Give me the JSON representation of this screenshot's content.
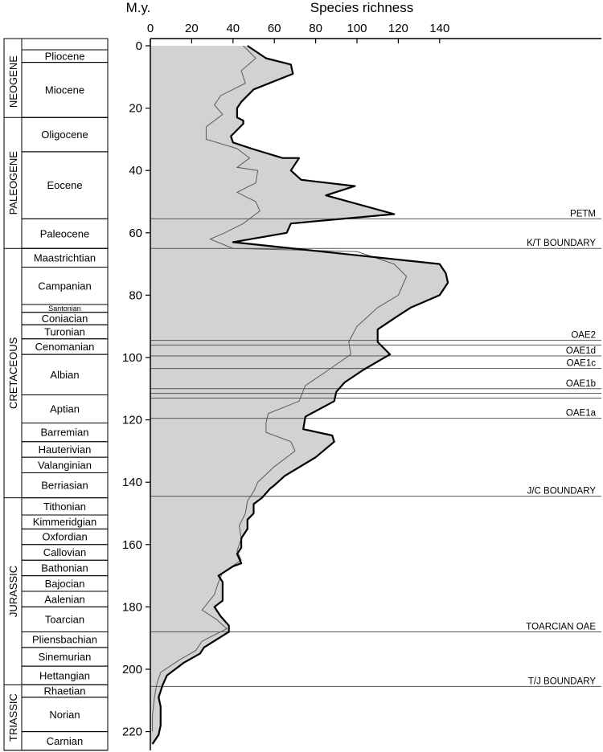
{
  "chart_data": {
    "type": "area",
    "xlabel": "Species richness",
    "ylabel": "M.y.",
    "xlim": [
      0,
      145
    ],
    "ylim": [
      0,
      224
    ],
    "y_inverted": true,
    "grid": false,
    "x_ticks": [
      0,
      20,
      40,
      60,
      80,
      100,
      120,
      140
    ],
    "y_ticks": [
      0,
      20,
      40,
      60,
      80,
      100,
      120,
      140,
      160,
      180,
      200,
      220
    ],
    "series": [
      {
        "style": "thick-outline-gray-fill",
        "points": [
          [
            47,
            0
          ],
          [
            56,
            4
          ],
          [
            68,
            6
          ],
          [
            69,
            9
          ],
          [
            50,
            14
          ],
          [
            44,
            18
          ],
          [
            42,
            20
          ],
          [
            42,
            23
          ],
          [
            45,
            24
          ],
          [
            45,
            25
          ],
          [
            39,
            29
          ],
          [
            40,
            31
          ],
          [
            49,
            33
          ],
          [
            64,
            36
          ],
          [
            72,
            36
          ],
          [
            68,
            40
          ],
          [
            73,
            43
          ],
          [
            99,
            45
          ],
          [
            85,
            48
          ],
          [
            118,
            54
          ],
          [
            68,
            57
          ],
          [
            66,
            60
          ],
          [
            40,
            63
          ],
          [
            140,
            70
          ],
          [
            143,
            73
          ],
          [
            144,
            76
          ],
          [
            140,
            80
          ],
          [
            126,
            84
          ],
          [
            119,
            87
          ],
          [
            110,
            91
          ],
          [
            110,
            95
          ],
          [
            116,
            99
          ],
          [
            103,
            104
          ],
          [
            94,
            108
          ],
          [
            90,
            111
          ],
          [
            89,
            114
          ],
          [
            75,
            119
          ],
          [
            74,
            123
          ],
          [
            88,
            125
          ],
          [
            89,
            127
          ],
          [
            80,
            132
          ],
          [
            65,
            138
          ],
          [
            60,
            141
          ],
          [
            58,
            142
          ],
          [
            54,
            145
          ],
          [
            50,
            147
          ],
          [
            50,
            150
          ],
          [
            47,
            152
          ],
          [
            47,
            155
          ],
          [
            44,
            158
          ],
          [
            44,
            161
          ],
          [
            42,
            163
          ],
          [
            44,
            166
          ],
          [
            40,
            167
          ],
          [
            33,
            170
          ],
          [
            35,
            172
          ],
          [
            35,
            175
          ],
          [
            35,
            178
          ],
          [
            31,
            180
          ],
          [
            34,
            183
          ],
          [
            38,
            186
          ],
          [
            38,
            188
          ],
          [
            26,
            193
          ],
          [
            24,
            195
          ],
          [
            16,
            198
          ],
          [
            8,
            202
          ],
          [
            6,
            205
          ],
          [
            5,
            207
          ],
          [
            4,
            209
          ],
          [
            5,
            212
          ],
          [
            5,
            216
          ],
          [
            5,
            218
          ],
          [
            4,
            221
          ],
          [
            1,
            224
          ]
        ]
      },
      {
        "style": "thin-line",
        "points": [
          [
            45,
            0
          ],
          [
            51,
            4
          ],
          [
            44,
            8
          ],
          [
            46,
            12
          ],
          [
            34,
            16
          ],
          [
            31,
            19
          ],
          [
            35,
            22
          ],
          [
            27,
            26
          ],
          [
            27,
            30
          ],
          [
            42,
            33
          ],
          [
            48,
            36
          ],
          [
            42,
            39
          ],
          [
            52,
            40
          ],
          [
            51,
            44
          ],
          [
            42,
            47
          ],
          [
            51,
            50
          ],
          [
            53,
            53
          ],
          [
            45,
            57
          ],
          [
            36,
            60
          ],
          [
            29,
            62
          ],
          [
            40,
            65
          ],
          [
            100,
            66
          ],
          [
            118,
            70
          ],
          [
            124,
            74
          ],
          [
            120,
            80
          ],
          [
            110,
            84
          ],
          [
            100,
            90
          ],
          [
            96,
            95
          ],
          [
            97,
            99
          ],
          [
            84,
            105
          ],
          [
            75,
            109
          ],
          [
            72,
            114
          ],
          [
            57,
            118
          ],
          [
            56,
            121
          ],
          [
            56,
            124
          ],
          [
            68,
            127
          ],
          [
            70,
            130
          ],
          [
            60,
            135
          ],
          [
            52,
            140
          ],
          [
            50,
            143
          ],
          [
            47,
            146
          ],
          [
            46,
            150
          ],
          [
            43,
            154
          ],
          [
            44,
            158
          ],
          [
            42,
            162
          ],
          [
            44,
            165
          ],
          [
            35,
            169
          ],
          [
            33,
            172
          ],
          [
            31,
            176
          ],
          [
            25,
            181
          ],
          [
            32,
            184
          ],
          [
            37,
            187
          ],
          [
            25,
            191
          ],
          [
            22,
            194
          ],
          [
            14,
            197
          ],
          [
            5,
            201
          ],
          [
            3,
            205
          ],
          [
            2,
            209
          ],
          [
            1,
            215
          ],
          [
            1,
            220
          ]
        ]
      }
    ],
    "events": [
      {
        "label": "PETM",
        "y": 55.5
      },
      {
        "label": "K/T BOUNDARY",
        "y": 65
      },
      {
        "label": "OAE2",
        "y": 94.5
      },
      {
        "label": "",
        "y": 96
      },
      {
        "label": "OAE1d",
        "y": 99.5
      },
      {
        "label": "OAE1c",
        "y": 103.5
      },
      {
        "label": "OAE1b",
        "y": 110
      },
      {
        "label": "",
        "y": 111.5
      },
      {
        "label": "",
        "y": 113
      },
      {
        "label": "OAE1a",
        "y": 119.5
      },
      {
        "label": "J/C BOUNDARY",
        "y": 144.5
      },
      {
        "label": "TOARCIAN OAE",
        "y": 188
      },
      {
        "label": "T/J BOUNDARY",
        "y": 205.5
      }
    ],
    "periods": [
      {
        "name": "NEOGENE",
        "top": 0,
        "bottom": 23
      },
      {
        "name": "PALEOGENE",
        "top": 23,
        "bottom": 65
      },
      {
        "name": "CRETACEOUS",
        "top": 65,
        "bottom": 145
      },
      {
        "name": "JURASSIC",
        "top": 145,
        "bottom": 205
      },
      {
        "name": "TRIASSIC",
        "top": 205,
        "bottom": 226
      }
    ],
    "stages": [
      {
        "name": "Pliocene",
        "top": 1.3,
        "bottom": 5.3
      },
      {
        "name": "Miocene",
        "top": 5.3,
        "bottom": 23
      },
      {
        "name": "Oligocene",
        "top": 23,
        "bottom": 34
      },
      {
        "name": "Eocene",
        "top": 34,
        "bottom": 55.5
      },
      {
        "name": "Paleocene",
        "top": 55.5,
        "bottom": 65
      },
      {
        "name": "Maastrichtian",
        "top": 65,
        "bottom": 71
      },
      {
        "name": "Campanian",
        "top": 71,
        "bottom": 83
      },
      {
        "name": "Santonian",
        "top": 83,
        "bottom": 85.5
      },
      {
        "name": "Coniacian",
        "top": 85.5,
        "bottom": 89.5
      },
      {
        "name": "Turonian",
        "top": 89.5,
        "bottom": 94
      },
      {
        "name": "Cenomanian",
        "top": 94,
        "bottom": 99
      },
      {
        "name": "Albian",
        "top": 99,
        "bottom": 112
      },
      {
        "name": "Aptian",
        "top": 112,
        "bottom": 121
      },
      {
        "name": "Barremian",
        "top": 121,
        "bottom": 127
      },
      {
        "name": "Hauterivian",
        "top": 127,
        "bottom": 132
      },
      {
        "name": "Valanginian",
        "top": 132,
        "bottom": 137
      },
      {
        "name": "Berriasian",
        "top": 137,
        "bottom": 145
      },
      {
        "name": "Tithonian",
        "top": 145,
        "bottom": 150.5
      },
      {
        "name": "Kimmeridgian",
        "top": 150.5,
        "bottom": 155
      },
      {
        "name": "Oxfordian",
        "top": 155,
        "bottom": 160
      },
      {
        "name": "Callovian",
        "top": 160,
        "bottom": 165
      },
      {
        "name": "Bathonian",
        "top": 165,
        "bottom": 170
      },
      {
        "name": "Bajocian",
        "top": 170,
        "bottom": 175
      },
      {
        "name": "Aalenian",
        "top": 175,
        "bottom": 180
      },
      {
        "name": "Toarcian",
        "top": 180,
        "bottom": 188
      },
      {
        "name": "Pliensbachian",
        "top": 188,
        "bottom": 193
      },
      {
        "name": "Sinemurian",
        "top": 193,
        "bottom": 199
      },
      {
        "name": "Hettangian",
        "top": 199,
        "bottom": 205
      },
      {
        "name": "Rhaetian",
        "top": 205,
        "bottom": 209
      },
      {
        "name": "Norian",
        "top": 209,
        "bottom": 220
      },
      {
        "name": "Carnian",
        "top": 220,
        "bottom": 226
      }
    ],
    "colors": {
      "fill": "#d2d2d2",
      "outline": "#000000",
      "inner_line": "#5a5a5a",
      "event_line": "#555555",
      "axis": "#000000"
    }
  }
}
